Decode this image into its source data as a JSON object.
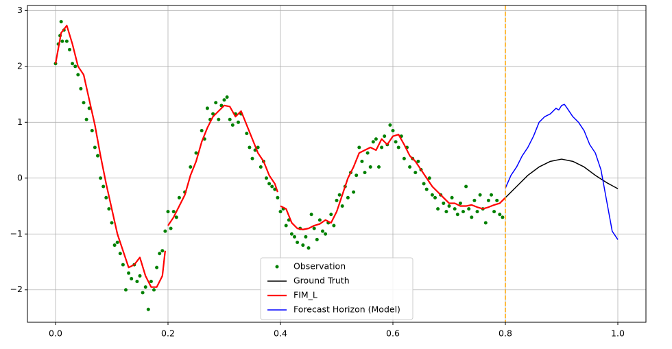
{
  "chart_data": {
    "type": "line",
    "xlim": [
      -0.05,
      1.05
    ],
    "ylim": [
      -2.58,
      3.09
    ],
    "xticks": [
      {
        "value": 0,
        "label": "0.0"
      },
      0.2,
      0.4,
      0.6,
      0.8,
      {
        "value": 1,
        "label": "1.0"
      }
    ],
    "yticks": [
      {
        "value": -2,
        "label": "−2"
      },
      {
        "value": -1,
        "label": "−1"
      },
      0,
      1,
      2,
      3
    ],
    "grid": true,
    "legend": "lower center",
    "vline": {
      "x": 0.8,
      "color": "#ffa500"
    },
    "series": [
      {
        "name": "Observation",
        "mode": "markers",
        "color": "#008000",
        "x": [
          0.0,
          0.005,
          0.008,
          0.01,
          0.012,
          0.015,
          0.02,
          0.025,
          0.03,
          0.035,
          0.04,
          0.045,
          0.05,
          0.055,
          0.06,
          0.065,
          0.07,
          0.075,
          0.08,
          0.085,
          0.09,
          0.095,
          0.1,
          0.105,
          0.11,
          0.115,
          0.12,
          0.125,
          0.13,
          0.135,
          0.14,
          0.145,
          0.15,
          0.155,
          0.16,
          0.165,
          0.17,
          0.175,
          0.18,
          0.185,
          0.19,
          0.195,
          0.2,
          0.205,
          0.21,
          0.215,
          0.22,
          0.23,
          0.24,
          0.25,
          0.26,
          0.265,
          0.27,
          0.275,
          0.28,
          0.285,
          0.29,
          0.295,
          0.3,
          0.305,
          0.31,
          0.315,
          0.32,
          0.325,
          0.33,
          0.34,
          0.345,
          0.35,
          0.355,
          0.36,
          0.365,
          0.37,
          0.375,
          0.38,
          0.385,
          0.39,
          0.395,
          0.4,
          0.405,
          0.41,
          0.415,
          0.42,
          0.425,
          0.43,
          0.435,
          0.44,
          0.445,
          0.45,
          0.455,
          0.46,
          0.465,
          0.47,
          0.475,
          0.48,
          0.485,
          0.49,
          0.495,
          0.5,
          0.505,
          0.51,
          0.515,
          0.52,
          0.525,
          0.53,
          0.535,
          0.54,
          0.545,
          0.55,
          0.555,
          0.56,
          0.565,
          0.57,
          0.575,
          0.58,
          0.585,
          0.59,
          0.595,
          0.6,
          0.605,
          0.61,
          0.615,
          0.62,
          0.625,
          0.63,
          0.635,
          0.64,
          0.645,
          0.65,
          0.655,
          0.66,
          0.665,
          0.67,
          0.675,
          0.68,
          0.685,
          0.69,
          0.695,
          0.7,
          0.705,
          0.71,
          0.715,
          0.72,
          0.725,
          0.73,
          0.735,
          0.74,
          0.745,
          0.75,
          0.755,
          0.76,
          0.765,
          0.77,
          0.775,
          0.78,
          0.785,
          0.79,
          0.795
        ],
        "values": [
          2.05,
          2.4,
          2.55,
          2.8,
          2.45,
          2.65,
          2.45,
          2.3,
          2.05,
          2.0,
          1.85,
          1.6,
          1.35,
          1.05,
          1.25,
          0.85,
          0.55,
          0.4,
          0.0,
          -0.15,
          -0.35,
          -0.55,
          -0.8,
          -1.2,
          -1.15,
          -1.35,
          -1.55,
          -2.0,
          -1.7,
          -1.8,
          -1.55,
          -1.85,
          -1.75,
          -2.05,
          -1.95,
          -2.35,
          -1.85,
          -2.0,
          -1.6,
          -1.35,
          -1.3,
          -0.95,
          -0.6,
          -0.9,
          -0.6,
          -0.7,
          -0.35,
          -0.25,
          0.2,
          0.45,
          0.85,
          0.7,
          1.25,
          1.05,
          1.15,
          1.35,
          1.05,
          1.3,
          1.4,
          1.45,
          1.05,
          0.95,
          1.15,
          1.0,
          1.15,
          0.8,
          0.55,
          0.35,
          0.5,
          0.55,
          0.2,
          0.3,
          0.0,
          -0.1,
          -0.15,
          -0.2,
          -0.35,
          -0.6,
          -0.55,
          -0.85,
          -0.75,
          -1.0,
          -1.05,
          -1.15,
          -0.9,
          -1.2,
          -1.05,
          -1.25,
          -0.65,
          -0.9,
          -1.1,
          -0.75,
          -0.95,
          -1.0,
          -0.8,
          -0.65,
          -0.85,
          -0.4,
          -0.3,
          -0.5,
          -0.15,
          -0.35,
          0.1,
          -0.25,
          0.05,
          0.55,
          0.3,
          0.1,
          0.45,
          0.2,
          0.65,
          0.7,
          0.2,
          0.55,
          0.75,
          0.6,
          0.95,
          0.85,
          0.65,
          0.55,
          0.75,
          0.35,
          0.55,
          0.2,
          0.35,
          0.1,
          0.3,
          0.15,
          -0.1,
          -0.2,
          0.0,
          -0.3,
          -0.35,
          -0.55,
          -0.3,
          -0.45,
          -0.6,
          -0.5,
          -0.35,
          -0.55,
          -0.65,
          -0.45,
          -0.6,
          -0.15,
          -0.55,
          -0.7,
          -0.4,
          -0.6,
          -0.3,
          -0.55,
          -0.8,
          -0.4,
          -0.3,
          -0.6,
          -0.4,
          -0.65,
          -0.7
        ]
      },
      {
        "name": "Ground Truth",
        "mode": "line",
        "color": "#000000",
        "linewidth": 1.5,
        "x": [
          0.8,
          0.82,
          0.84,
          0.86,
          0.88,
          0.9,
          0.92,
          0.94,
          0.96,
          0.98,
          1.0
        ],
        "values": [
          -0.35,
          -0.15,
          0.05,
          0.2,
          0.3,
          0.34,
          0.3,
          0.2,
          0.05,
          -0.08,
          -0.19
        ]
      },
      {
        "name": "FIM_L",
        "mode": "line",
        "color": "#ff0000",
        "linewidth": 2.2,
        "x": [
          0,
          0.01,
          0.02,
          0.03,
          0.04,
          0.05,
          0.06,
          0.07,
          0.08,
          0.09,
          0.1,
          0.11,
          0.12,
          0.13,
          0.14,
          0.15,
          0.16,
          0.17,
          0.18,
          0.19,
          0.195,
          0.198,
          0.2,
          0.21,
          0.22,
          0.23,
          0.24,
          0.25,
          0.26,
          0.27,
          0.28,
          0.29,
          0.3,
          0.31,
          0.32,
          0.33,
          0.34,
          0.35,
          0.36,
          0.37,
          0.38,
          0.39,
          0.395,
          0.398,
          0.4,
          0.41,
          0.42,
          0.43,
          0.44,
          0.45,
          0.46,
          0.47,
          0.48,
          0.49,
          0.5,
          0.51,
          0.52,
          0.53,
          0.54,
          0.55,
          0.56,
          0.57,
          0.58,
          0.59,
          0.6,
          0.61,
          0.62,
          0.63,
          0.64,
          0.65,
          0.66,
          0.67,
          0.68,
          0.69,
          0.7,
          0.71,
          0.72,
          0.73,
          0.74,
          0.75,
          0.76,
          0.77,
          0.78,
          0.79,
          0.8
        ],
        "values": [
          2.05,
          2.6,
          2.73,
          2.4,
          2.0,
          1.85,
          1.4,
          0.95,
          0.4,
          -0.1,
          -0.55,
          -1.0,
          -1.3,
          -1.6,
          -1.55,
          -1.42,
          -1.75,
          -1.95,
          -1.95,
          -1.75,
          -1.3,
          null,
          -0.85,
          -0.7,
          -0.5,
          -0.3,
          0.05,
          0.3,
          0.65,
          0.9,
          1.1,
          1.2,
          1.3,
          1.28,
          1.1,
          1.2,
          0.95,
          0.7,
          0.45,
          0.3,
          0.05,
          -0.1,
          -0.25,
          null,
          -0.5,
          -0.55,
          -0.8,
          -0.9,
          -0.92,
          -0.9,
          -0.85,
          -0.82,
          -0.75,
          -0.8,
          -0.6,
          -0.3,
          0.0,
          0.2,
          0.45,
          0.5,
          0.55,
          0.5,
          0.7,
          0.6,
          0.75,
          0.78,
          0.6,
          0.4,
          0.3,
          0.15,
          0.0,
          -0.15,
          -0.25,
          -0.35,
          -0.45,
          -0.45,
          -0.5,
          -0.5,
          -0.48,
          -0.52,
          -0.55,
          -0.52,
          -0.48,
          -0.45,
          -0.35
        ]
      },
      {
        "name": "Forecast Horizon (Model)",
        "mode": "line",
        "color": "#0000ff",
        "linewidth": 1.5,
        "x": [
          0.8,
          0.81,
          0.82,
          0.83,
          0.84,
          0.85,
          0.86,
          0.87,
          0.88,
          0.89,
          0.895,
          0.9,
          0.905,
          0.91,
          0.92,
          0.93,
          0.94,
          0.95,
          0.96,
          0.97,
          0.98,
          0.99,
          1.0
        ],
        "values": [
          -0.18,
          0.05,
          0.2,
          0.4,
          0.55,
          0.75,
          1.0,
          1.1,
          1.15,
          1.25,
          1.22,
          1.3,
          1.32,
          1.25,
          1.1,
          1.0,
          0.85,
          0.6,
          0.45,
          0.15,
          -0.4,
          -0.95,
          -1.1
        ]
      }
    ]
  }
}
